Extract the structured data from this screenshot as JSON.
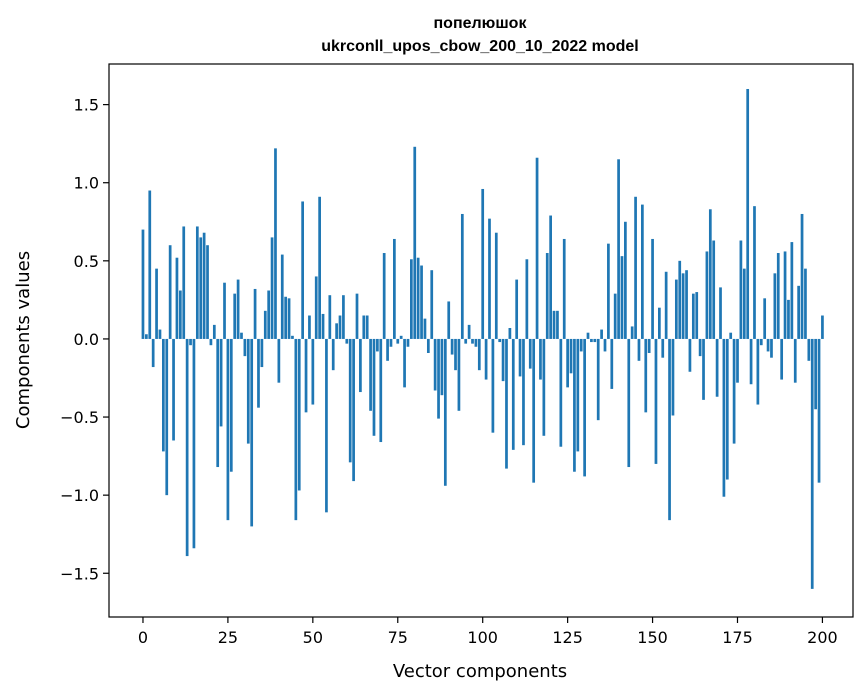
{
  "chart_data": {
    "type": "bar",
    "title": "попелюшок",
    "subtitle": "ukrconll_upos_cbow_200_10_2022 model",
    "xlabel": "Vector components",
    "ylabel": "Components values",
    "xlim": [
      -10,
      209
    ],
    "ylim": [
      -1.78,
      1.76
    ],
    "xticks": [
      0,
      25,
      50,
      75,
      100,
      125,
      150,
      175,
      200
    ],
    "yticks": [
      -1.5,
      -1.0,
      -0.5,
      0.0,
      0.5,
      1.0,
      1.5
    ],
    "ytick_labels": [
      "−1.5",
      "−1.0",
      "−0.5",
      "0.0",
      "0.5",
      "1.0",
      "1.5"
    ],
    "grid": false,
    "bar_color": "#1f77b4",
    "values": [
      0.7,
      0.03,
      0.95,
      -0.18,
      0.45,
      0.06,
      -0.72,
      -1.0,
      0.6,
      -0.65,
      0.52,
      0.31,
      0.72,
      -1.39,
      -0.04,
      -1.34,
      0.72,
      0.65,
      0.68,
      0.6,
      -0.04,
      0.09,
      -0.82,
      -0.56,
      0.36,
      -1.16,
      -0.85,
      0.29,
      0.38,
      0.04,
      -0.11,
      -0.67,
      -1.2,
      0.32,
      -0.44,
      -0.18,
      0.18,
      0.31,
      0.65,
      1.22,
      -0.28,
      0.54,
      0.27,
      0.26,
      0.02,
      -1.16,
      -0.97,
      0.88,
      -0.47,
      0.15,
      -0.42,
      0.4,
      0.91,
      0.16,
      -1.11,
      0.28,
      -0.2,
      0.1,
      0.15,
      0.28,
      -0.03,
      -0.79,
      -0.91,
      0.29,
      -0.34,
      0.15,
      0.15,
      -0.46,
      -0.62,
      -0.08,
      -0.66,
      0.55,
      -0.14,
      -0.05,
      0.64,
      -0.03,
      0.02,
      -0.31,
      -0.05,
      0.51,
      1.23,
      0.52,
      0.47,
      0.13,
      -0.09,
      0.44,
      -0.33,
      -0.51,
      -0.36,
      -0.94,
      0.24,
      -0.1,
      -0.2,
      -0.46,
      0.8,
      -0.03,
      0.09,
      -0.03,
      -0.05,
      -0.2,
      0.96,
      -0.26,
      0.77,
      -0.6,
      0.68,
      -0.02,
      -0.27,
      -0.83,
      0.07,
      -0.71,
      0.38,
      -0.24,
      -0.68,
      0.51,
      -0.19,
      -0.92,
      1.16,
      -0.26,
      -0.62,
      0.55,
      0.79,
      0.18,
      0.18,
      -0.69,
      0.64,
      -0.31,
      -0.22,
      -0.85,
      -0.72,
      -0.08,
      -0.88,
      0.04,
      -0.02,
      -0.02,
      -0.52,
      0.06,
      -0.08,
      0.61,
      -0.32,
      0.29,
      1.15,
      0.53,
      0.75,
      -0.82,
      0.08,
      0.91,
      -0.14,
      0.86,
      -0.47,
      -0.09,
      0.64,
      -0.8,
      0.2,
      -0.12,
      0.43,
      -1.16,
      -0.49,
      0.38,
      0.5,
      0.42,
      0.44,
      -0.21,
      0.29,
      0.3,
      -0.11,
      -0.39,
      0.56,
      0.83,
      0.63,
      -0.37,
      0.33,
      -1.01,
      -0.9,
      0.04,
      -0.67,
      -0.28,
      0.63,
      0.45,
      1.6,
      -0.29,
      0.85,
      -0.42,
      -0.04,
      0.26,
      -0.08,
      -0.12,
      0.42,
      0.55,
      -0.26,
      0.56,
      0.25,
      0.62,
      -0.28,
      0.34,
      0.8,
      0.45,
      -0.14,
      -1.6,
      -0.45,
      -0.92,
      0.15
    ]
  }
}
